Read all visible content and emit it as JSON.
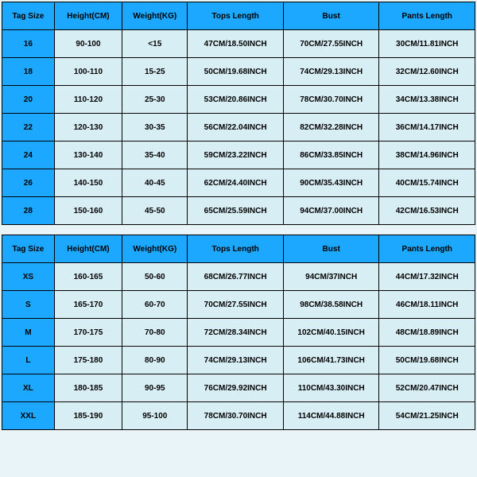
{
  "colors": {
    "header_bg": "#1ca8ff",
    "cell_bg": "#d8eef5",
    "border": "#000000",
    "text": "#000000"
  },
  "typography": {
    "font_family": "Comic Sans MS",
    "font_size": 10,
    "font_weight": "bold"
  },
  "table1": {
    "headers": {
      "size": "Tag Size",
      "height": "Height(CM)",
      "weight": "Weight(KG)",
      "tops": "Tops Length",
      "bust": "Bust",
      "pants": "Pants Length"
    },
    "rows": [
      {
        "size": "16",
        "height": "90-100",
        "weight": "<15",
        "tops": "47CM/18.50INCH",
        "bust": "70CM/27.55INCH",
        "pants": "30CM/11.81INCH"
      },
      {
        "size": "18",
        "height": "100-110",
        "weight": "15-25",
        "tops": "50CM/19.68INCH",
        "bust": "74CM/29.13INCH",
        "pants": "32CM/12.60INCH"
      },
      {
        "size": "20",
        "height": "110-120",
        "weight": "25-30",
        "tops": "53CM/20.86INCH",
        "bust": "78CM/30.70INCH",
        "pants": "34CM/13.38INCH"
      },
      {
        "size": "22",
        "height": "120-130",
        "weight": "30-35",
        "tops": "56CM/22.04INCH",
        "bust": "82CM/32.28INCH",
        "pants": "36CM/14.17INCH"
      },
      {
        "size": "24",
        "height": "130-140",
        "weight": "35-40",
        "tops": "59CM/23.22INCH",
        "bust": "86CM/33.85INCH",
        "pants": "38CM/14.96INCH"
      },
      {
        "size": "26",
        "height": "140-150",
        "weight": "40-45",
        "tops": "62CM/24.40INCH",
        "bust": "90CM/35.43INCH",
        "pants": "40CM/15.74INCH"
      },
      {
        "size": "28",
        "height": "150-160",
        "weight": "45-50",
        "tops": "65CM/25.59INCH",
        "bust": "94CM/37.00INCH",
        "pants": "42CM/16.53INCH"
      }
    ]
  },
  "table2": {
    "headers": {
      "size": "Tag Size",
      "height": "Height(CM)",
      "weight": "Weight(KG)",
      "tops": "Tops Length",
      "bust": "Bust",
      "pants": "Pants Length"
    },
    "rows": [
      {
        "size": "XS",
        "height": "160-165",
        "weight": "50-60",
        "tops": "68CM/26.77INCH",
        "bust": "94CM/37INCH",
        "pants": "44CM/17.32INCH"
      },
      {
        "size": "S",
        "height": "165-170",
        "weight": "60-70",
        "tops": "70CM/27.55INCH",
        "bust": "98CM/38.58INCH",
        "pants": "46CM/18.11INCH"
      },
      {
        "size": "M",
        "height": "170-175",
        "weight": "70-80",
        "tops": "72CM/28.34INCH",
        "bust": "102CM/40.15INCH",
        "pants": "48CM/18.89INCH"
      },
      {
        "size": "L",
        "height": "175-180",
        "weight": "80-90",
        "tops": "74CM/29.13INCH",
        "bust": "106CM/41.73INCH",
        "pants": "50CM/19.68INCH"
      },
      {
        "size": "XL",
        "height": "180-185",
        "weight": "90-95",
        "tops": "76CM/29.92INCH",
        "bust": "110CM/43.30INCH",
        "pants": "52CM/20.47INCH"
      },
      {
        "size": "XXL",
        "height": "185-190",
        "weight": "95-100",
        "tops": "78CM/30.70INCH",
        "bust": "114CM/44.88INCH",
        "pants": "54CM/21.25INCH"
      }
    ]
  }
}
